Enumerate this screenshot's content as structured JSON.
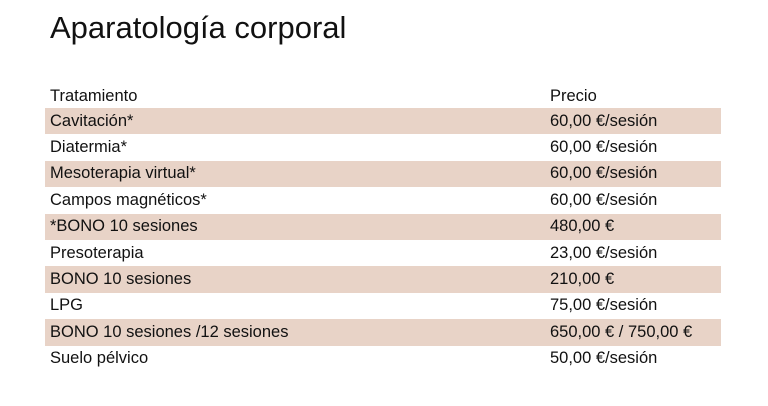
{
  "title": "Aparatología corporal",
  "table": {
    "headers": [
      "Tratamiento",
      "Precio"
    ],
    "shade_color": "#e8d3c7",
    "rows": [
      {
        "treatment": "Cavitación*",
        "price": "60,00 €/sesión"
      },
      {
        "treatment": "Diatermia*",
        "price": "60,00 €/sesión"
      },
      {
        "treatment": "Mesoterapia virtual*",
        "price": "60,00 €/sesión"
      },
      {
        "treatment": "Campos magnéticos*",
        "price": "60,00 €/sesión"
      },
      {
        "treatment": "*BONO 10 sesiones",
        "price": "480,00 €"
      },
      {
        "treatment": "Presoterapia",
        "price": "23,00 €/sesión"
      },
      {
        "treatment": "BONO 10 sesiones",
        "price": "210,00 €"
      },
      {
        "treatment": "LPG",
        "price": "75,00 €/sesión"
      },
      {
        "treatment": "BONO 10 sesiones /12 sesiones",
        "price": "650,00 € / 750,00 €"
      },
      {
        "treatment": "Suelo pélvico",
        "price": "50,00 €/sesión"
      }
    ]
  }
}
